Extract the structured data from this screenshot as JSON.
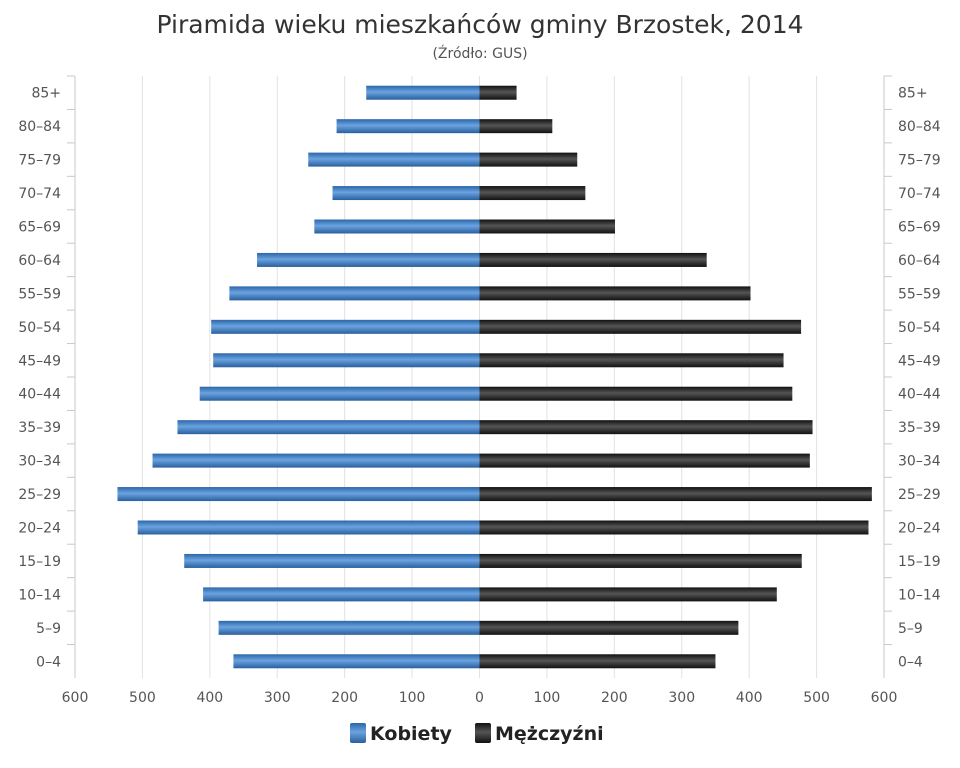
{
  "chart_data": {
    "type": "bar",
    "orientation": "horizontal",
    "subtype": "population-pyramid",
    "title": "Piramida wieku mieszkańców gminy Brzostek, 2014",
    "subtitle": "(Źródło: GUS)",
    "categories": [
      "85+",
      "80–84",
      "75–79",
      "70–74",
      "65–69",
      "60–64",
      "55–59",
      "50–54",
      "45–49",
      "40–44",
      "35–39",
      "30–34",
      "25–29",
      "20–24",
      "15–19",
      "10–14",
      "5–9",
      "0–4"
    ],
    "series": [
      {
        "name": "Kobiety",
        "color": "#3f7fc4",
        "side": "left",
        "values": [
          168,
          212,
          254,
          218,
          245,
          330,
          371,
          398,
          395,
          415,
          448,
          485,
          537,
          507,
          438,
          410,
          387,
          365
        ]
      },
      {
        "name": "Mężczyźni",
        "color": "#222222",
        "side": "right",
        "values": [
          55,
          108,
          145,
          157,
          201,
          337,
          402,
          477,
          451,
          464,
          494,
          490,
          582,
          577,
          478,
          441,
          384,
          350
        ]
      }
    ],
    "xlim": [
      -600,
      600
    ],
    "x_ticks": [
      -600,
      -500,
      -400,
      -300,
      -200,
      -100,
      0,
      100,
      200,
      300,
      400,
      500,
      600
    ],
    "x_tick_labels": [
      "600",
      "500",
      "400",
      "300",
      "200",
      "100",
      "0",
      "100",
      "200",
      "300",
      "400",
      "500",
      "600"
    ],
    "grid": true,
    "legend": "bottom-center"
  }
}
